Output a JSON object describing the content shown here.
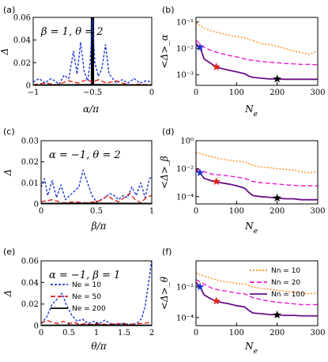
{
  "chart_data": [
    {
      "id": "a",
      "label": "(a)",
      "type": "line",
      "xlabel": "α/π",
      "ylabel": "Δ",
      "xlim": [
        -1,
        0
      ],
      "ylim": [
        0,
        0.06
      ],
      "xticks": [
        -1,
        -0.5,
        0
      ],
      "xticklabels": [
        "−1",
        "−0.5",
        "0"
      ],
      "yticks": [
        0,
        0.02,
        0.04,
        0.06
      ],
      "yticklabels": [
        "0",
        "0.02",
        "0.04",
        "0.06"
      ],
      "annotation": "β = 1,  θ = 2",
      "vertical_band": [
        -0.51,
        -0.49
      ],
      "series": [
        {
          "name": "Ne = 10",
          "color": "#1f35d6",
          "dash": "3,2",
          "x": [
            -1,
            -0.95,
            -0.9,
            -0.85,
            -0.82,
            -0.78,
            -0.74,
            -0.7,
            -0.66,
            -0.63,
            -0.6,
            -0.57,
            -0.54,
            -0.52,
            -0.5,
            -0.48,
            -0.45,
            -0.42,
            -0.39,
            -0.36,
            -0.33,
            -0.3,
            -0.25,
            -0.2,
            -0.15,
            -0.1,
            -0.05,
            0
          ],
          "y": [
            0.003,
            0.006,
            0.002,
            0.006,
            0.004,
            0.001,
            0.009,
            0.006,
            0.03,
            0.01,
            0.038,
            0.012,
            0.004,
            0.02,
            0.058,
            0.02,
            0.008,
            0.015,
            0.036,
            0.01,
            0.006,
            0.002,
            0.005,
            0.002,
            0.006,
            0.002,
            0.004,
            0.003
          ]
        },
        {
          "name": "Ne = 50",
          "color": "#e0201a",
          "dash": "6,3",
          "x": [
            -1,
            -0.9,
            -0.8,
            -0.7,
            -0.62,
            -0.55,
            -0.5,
            -0.45,
            -0.38,
            -0.3,
            -0.2,
            -0.1,
            0
          ],
          "y": [
            0.0005,
            0.002,
            0.0005,
            0.004,
            0.002,
            0.005,
            0.003,
            0.005,
            0.002,
            0.004,
            0.0005,
            0.001,
            0.0005
          ]
        },
        {
          "name": "Ne = 200",
          "color": "#000000",
          "dash": "",
          "x": [
            -1,
            -0.5,
            0
          ],
          "y": [
            0.0003,
            0.0006,
            0.0003
          ]
        }
      ]
    },
    {
      "id": "b",
      "label": "(b)",
      "type": "line",
      "xlabel": "N_e",
      "ylabel": "<Δ>_α",
      "yscale": "log",
      "xlim": [
        0,
        300
      ],
      "ylim": [
        0.0004,
        0.15
      ],
      "xticks": [
        0,
        100,
        200,
        300
      ],
      "xticklabels": [
        "0",
        "100",
        "200",
        "300"
      ],
      "yticks": [
        0.001,
        0.01,
        0.1
      ],
      "yticklabels": [
        "10⁻³",
        "10⁻²",
        "10⁻¹"
      ],
      "series": [
        {
          "name": "Nn = 10",
          "color": "#ff8c1a",
          "dash": "2,2",
          "x": [
            0,
            20,
            40,
            60,
            80,
            100,
            120,
            140,
            160,
            180,
            200,
            220,
            240,
            260,
            280,
            300
          ],
          "y": [
            0.09,
            0.06,
            0.045,
            0.038,
            0.032,
            0.028,
            0.025,
            0.02,
            0.015,
            0.014,
            0.012,
            0.01,
            0.008,
            0.007,
            0.006,
            0.008
          ]
        },
        {
          "name": "Nn = 20",
          "color": "#e81ed0",
          "dash": "6,3",
          "x": [
            0,
            20,
            40,
            60,
            80,
            100,
            120,
            140,
            160,
            180,
            200,
            220,
            240,
            260,
            280,
            300
          ],
          "y": [
            0.02,
            0.011,
            0.008,
            0.0065,
            0.0055,
            0.0048,
            0.004,
            0.0035,
            0.0032,
            0.003,
            0.0029,
            0.0027,
            0.0026,
            0.0025,
            0.0025,
            0.0024
          ]
        },
        {
          "name": "Nn = 100",
          "color": "#6a0f86",
          "dash": "",
          "x": [
            0,
            10,
            20,
            40,
            50,
            60,
            80,
            100,
            120,
            130,
            140,
            160,
            180,
            200,
            220,
            240,
            260,
            280,
            300
          ],
          "y": [
            0.015,
            0.011,
            0.004,
            0.0025,
            0.002,
            0.0018,
            0.0015,
            0.0013,
            0.0011,
            0.0009,
            0.0008,
            0.00075,
            0.0007,
            0.0007,
            0.00068,
            0.00068,
            0.00068,
            0.00068,
            0.00068
          ]
        }
      ],
      "stars": [
        {
          "x": 10,
          "y": 0.011,
          "color": "#1f35d6"
        },
        {
          "x": 50,
          "y": 0.002,
          "color": "#e0201a"
        },
        {
          "x": 200,
          "y": 0.0007,
          "color": "#000000"
        }
      ]
    },
    {
      "id": "c",
      "label": "(c)",
      "type": "line",
      "xlabel": "β/π",
      "ylabel": "Δ",
      "xlim": [
        0,
        1
      ],
      "ylim": [
        0,
        0.03
      ],
      "xticks": [
        0,
        0.5,
        1
      ],
      "xticklabels": [
        "0",
        "0.5",
        "1"
      ],
      "yticks": [
        0,
        0.01,
        0.02,
        0.03
      ],
      "yticklabels": [
        "0",
        "0.01",
        "0.02",
        "0.03"
      ],
      "annotation": "α = −1, θ = 2",
      "series": [
        {
          "name": "Ne = 10",
          "color": "#1f35d6",
          "dash": "3,2",
          "x": [
            0,
            0.03,
            0.06,
            0.1,
            0.14,
            0.18,
            0.22,
            0.26,
            0.3,
            0.34,
            0.38,
            0.42,
            0.46,
            0.5,
            0.54,
            0.58,
            0.62,
            0.66,
            0.7,
            0.74,
            0.78,
            0.82,
            0.86,
            0.9,
            0.94,
            0.98,
            1
          ],
          "y": [
            0.008,
            0.012,
            0.004,
            0.011,
            0.003,
            0.009,
            0.002,
            0.004,
            0.006,
            0.008,
            0.016,
            0.01,
            0.004,
            0.001,
            0.002,
            0.003,
            0.005,
            0.004,
            0.002,
            0.004,
            0.003,
            0.008,
            0.004,
            0.01,
            0.003,
            0.012,
            0.013
          ]
        },
        {
          "name": "Ne = 50",
          "color": "#e0201a",
          "dash": "6,3",
          "x": [
            0,
            0.1,
            0.2,
            0.3,
            0.4,
            0.5,
            0.55,
            0.6,
            0.65,
            0.7,
            0.75,
            0.8,
            0.85,
            0.9,
            0.95,
            1
          ],
          "y": [
            0.001,
            0.002,
            0.0005,
            0.001,
            0.0005,
            0.001,
            0.002,
            0.004,
            0.002,
            0.001,
            0.003,
            0.005,
            0.002,
            0.0005,
            0.003,
            0.004
          ]
        },
        {
          "name": "Ne = 200",
          "color": "#000000",
          "dash": "",
          "x": [
            0,
            0.5,
            1
          ],
          "y": [
            0.0002,
            0.0003,
            0.0002
          ]
        }
      ]
    },
    {
      "id": "d",
      "label": "(d)",
      "type": "line",
      "xlabel": "N_e",
      "ylabel": "<Δ>_β",
      "yscale": "log",
      "xlim": [
        0,
        300
      ],
      "ylim": [
        3e-05,
        1
      ],
      "xticks": [
        0,
        100,
        200,
        300
      ],
      "xticklabels": [
        "0",
        "100",
        "200",
        "300"
      ],
      "yticks": [
        0.0001,
        0.01,
        1
      ],
      "yticklabels": [
        "10⁻⁴",
        "10⁻²",
        "10⁰"
      ],
      "series": [
        {
          "name": "Nn = 10",
          "color": "#ff8c1a",
          "dash": "2,2",
          "x": [
            0,
            20,
            40,
            60,
            80,
            100,
            120,
            140,
            160,
            180,
            200,
            220,
            240,
            260,
            280,
            300
          ],
          "y": [
            0.15,
            0.1,
            0.07,
            0.05,
            0.04,
            0.035,
            0.03,
            0.018,
            0.013,
            0.012,
            0.01,
            0.009,
            0.008,
            0.006,
            0.005,
            0.006
          ]
        },
        {
          "name": "Nn = 20",
          "color": "#e81ed0",
          "dash": "6,3",
          "x": [
            0,
            20,
            40,
            60,
            80,
            100,
            120,
            140,
            160,
            180,
            200,
            220,
            240,
            260,
            280,
            300
          ],
          "y": [
            0.01,
            0.006,
            0.004,
            0.0035,
            0.003,
            0.0025,
            0.002,
            0.0012,
            0.001,
            0.0009,
            0.0008,
            0.0007,
            0.00065,
            0.0006,
            0.0006,
            0.00058
          ]
        },
        {
          "name": "Nn = 100",
          "color": "#6a0f86",
          "dash": "",
          "x": [
            0,
            10,
            20,
            40,
            50,
            60,
            80,
            100,
            120,
            130,
            140,
            160,
            180,
            200,
            220,
            240,
            260,
            280,
            300
          ],
          "y": [
            0.008,
            0.005,
            0.002,
            0.0013,
            0.0012,
            0.001,
            0.0008,
            0.0006,
            0.0004,
            0.0002,
            0.00012,
            0.0001,
            9e-05,
            8e-05,
            7e-05,
            7e-05,
            6e-05,
            6e-05,
            6e-05
          ]
        }
      ],
      "stars": [
        {
          "x": 10,
          "y": 0.005,
          "color": "#1f35d6"
        },
        {
          "x": 50,
          "y": 0.0012,
          "color": "#e0201a"
        },
        {
          "x": 200,
          "y": 8e-05,
          "color": "#000000"
        }
      ]
    },
    {
      "id": "e",
      "label": "(e)",
      "type": "line",
      "xlabel": "θ/π",
      "ylabel": "Δ",
      "xlim": [
        0,
        2
      ],
      "ylim": [
        0,
        0.06
      ],
      "xticks": [
        0,
        0.5,
        1,
        1.5,
        2
      ],
      "xticklabels": [
        "0",
        "0.5",
        "1",
        "1.5",
        "2"
      ],
      "yticks": [
        0,
        0.02,
        0.04,
        0.06
      ],
      "yticklabels": [
        "0",
        "0.02",
        "0.04",
        "0.06"
      ],
      "annotation": "α = −1, β = 1",
      "legend": {
        "placement": "center-right",
        "entries": [
          "Ne = 10",
          "Ne = 50",
          "Ne = 200"
        ]
      },
      "series": [
        {
          "name": "Ne = 10",
          "color": "#1f35d6",
          "dash": "3,2",
          "x": [
            0,
            0.1,
            0.2,
            0.3,
            0.38,
            0.45,
            0.55,
            0.65,
            0.75,
            0.85,
            0.95,
            1.05,
            1.15,
            1.25,
            1.35,
            1.45,
            1.55,
            1.65,
            1.75,
            1.82,
            1.88,
            1.93,
            1.97,
            2
          ],
          "y": [
            0.002,
            0.008,
            0.02,
            0.025,
            0.03,
            0.02,
            0.01,
            0.004,
            0.006,
            0.002,
            0.004,
            0.002,
            0.005,
            0.002,
            0.001,
            0.002,
            0.0015,
            0.001,
            0.003,
            0.007,
            0.018,
            0.035,
            0.05,
            0.062
          ]
        },
        {
          "name": "Ne = 50",
          "color": "#e0201a",
          "dash": "6,3",
          "x": [
            0,
            0.1,
            0.2,
            0.3,
            0.4,
            0.5,
            0.6,
            0.7,
            0.8,
            0.9,
            1,
            1.2,
            1.4,
            1.6,
            1.8,
            2
          ],
          "y": [
            0.002,
            0.005,
            0.003,
            0.002,
            0.004,
            0.002,
            0.003,
            0.001,
            0.002,
            0.001,
            0.002,
            0.001,
            0.002,
            0.001,
            0.002,
            0.003
          ]
        },
        {
          "name": "Ne = 200",
          "color": "#000000",
          "dash": "",
          "x": [
            0,
            1,
            2
          ],
          "y": [
            0.0003,
            0.0005,
            0.0003
          ]
        }
      ]
    },
    {
      "id": "f",
      "label": "(f)",
      "type": "line",
      "xlabel": "N_e",
      "ylabel": "<Δ>_θ",
      "yscale": "log",
      "xlim": [
        0,
        300
      ],
      "ylim": [
        3e-05,
        0.5
      ],
      "xticks": [
        0,
        100,
        200,
        300
      ],
      "xticklabels": [
        "0",
        "100",
        "200",
        "300"
      ],
      "yticks": [
        0.0001,
        0.01
      ],
      "yticklabels": [
        "10⁻⁴",
        "10⁻²"
      ],
      "legend": {
        "placement": "top-right",
        "entries": [
          "Nn = 10",
          "Nn = 20",
          "Nn = 100"
        ]
      },
      "series": [
        {
          "name": "Nn = 10",
          "color": "#ff8c1a",
          "dash": "2,2",
          "x": [
            0,
            20,
            40,
            60,
            80,
            100,
            120,
            140,
            160,
            180,
            200,
            220,
            240,
            260,
            280,
            300
          ],
          "y": [
            0.08,
            0.05,
            0.035,
            0.025,
            0.02,
            0.017,
            0.015,
            0.01,
            0.008,
            0.007,
            0.006,
            0.005,
            0.0045,
            0.004,
            0.0035,
            0.004
          ]
        },
        {
          "name": "Nn = 20",
          "color": "#e81ed0",
          "dash": "6,3",
          "x": [
            0,
            20,
            40,
            60,
            80,
            100,
            120,
            140,
            160,
            180,
            200,
            220,
            240,
            260,
            280,
            300
          ],
          "y": [
            0.03,
            0.015,
            0.008,
            0.006,
            0.005,
            0.004,
            0.0035,
            0.002,
            0.0015,
            0.0012,
            0.001,
            0.0009,
            0.0008,
            0.0007,
            0.0007,
            0.0007
          ]
        },
        {
          "name": "Nn = 100",
          "color": "#6a0f86",
          "dash": "",
          "x": [
            0,
            10,
            20,
            40,
            50,
            60,
            80,
            100,
            120,
            130,
            140,
            160,
            180,
            200,
            220,
            240,
            260,
            280,
            300
          ],
          "y": [
            0.02,
            0.01,
            0.003,
            0.0015,
            0.0012,
            0.001,
            0.0008,
            0.0006,
            0.0005,
            0.0003,
            0.0002,
            0.00018,
            0.00016,
            0.00015,
            0.00014,
            0.00014,
            0.00013,
            0.00013,
            0.00013
          ]
        }
      ],
      "stars": [
        {
          "x": 10,
          "y": 0.01,
          "color": "#1f35d6"
        },
        {
          "x": 50,
          "y": 0.0012,
          "color": "#e0201a"
        },
        {
          "x": 200,
          "y": 0.00015,
          "color": "#000000"
        }
      ]
    }
  ]
}
